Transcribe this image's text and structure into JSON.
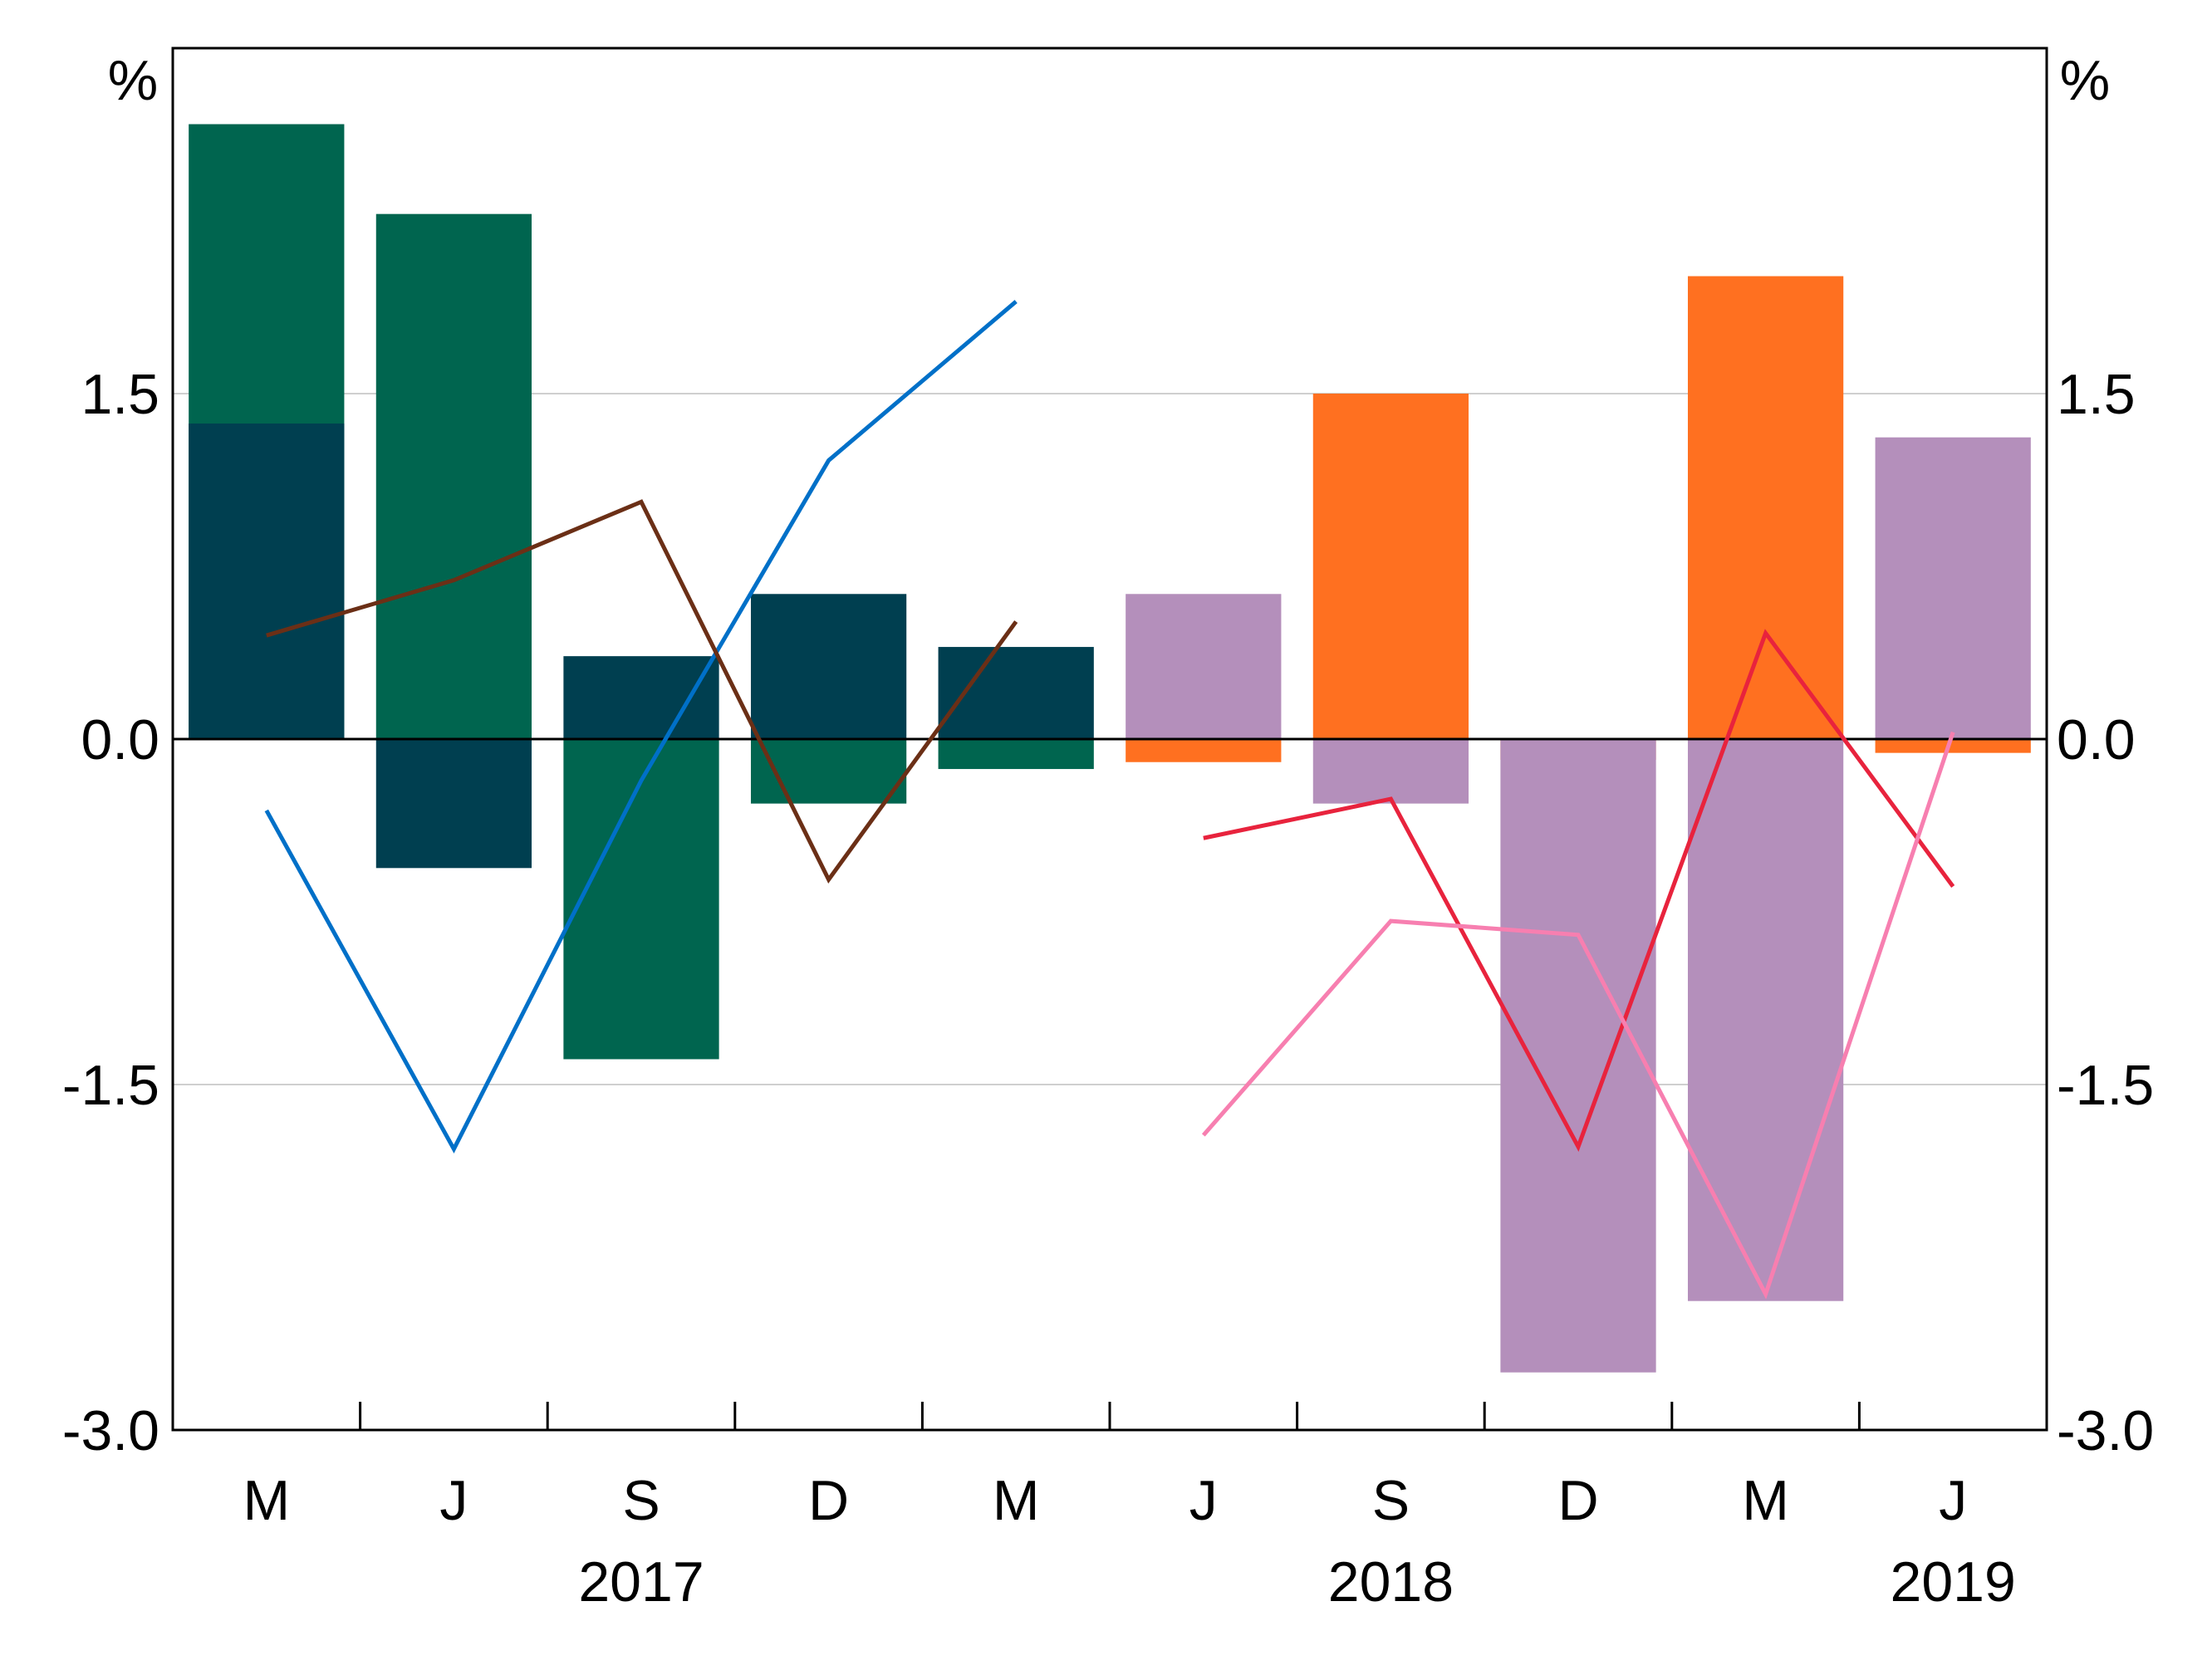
{
  "chart_data": {
    "type": "bar",
    "title": "",
    "xlabel": "",
    "ylabel": "",
    "unit_left": "%",
    "unit_right": "%",
    "ylim": [
      -3.0,
      3.0
    ],
    "yticks": [
      "1.5",
      "0.0",
      "-1.5",
      "-3.0"
    ],
    "ytick_values": [
      1.5,
      0.0,
      -1.5,
      -3.0
    ],
    "grid": true,
    "categories": [
      "M",
      "J",
      "S",
      "D",
      "M",
      "J",
      "S",
      "D",
      "M",
      "J"
    ],
    "years": [
      {
        "label": "2017",
        "center_index": 2.5
      },
      {
        "label": "2018",
        "center_index": 6.5
      },
      {
        "label": "2019",
        "center_index": 9.5
      }
    ],
    "bar_series": [
      {
        "color": "#00654f",
        "values": [
          2.67,
          2.28,
          -1.39,
          -0.28,
          -0.13,
          null,
          null,
          null,
          null,
          null
        ]
      },
      {
        "color": "#003f50",
        "values": [
          1.37,
          -0.56,
          0.36,
          0.63,
          0.4,
          null,
          null,
          null,
          null,
          null
        ]
      },
      {
        "color": "#ff7020",
        "values": [
          null,
          null,
          null,
          null,
          null,
          -0.1,
          1.5,
          -0.09,
          2.01,
          -0.06
        ]
      },
      {
        "color": "#b48fbb",
        "values": [
          null,
          null,
          null,
          null,
          null,
          0.63,
          -0.28,
          -2.75,
          -2.44,
          1.31
        ]
      }
    ],
    "line_series": [
      {
        "color": "#0070c8",
        "values": [
          -0.31,
          -1.78,
          null,
          null,
          1.9
        ],
        "x": [
          0,
          1,
          2,
          3,
          4
        ],
        "points": [
          -0.31,
          -1.78,
          -0.18,
          1.21,
          1.9
        ]
      },
      {
        "color": "#6b2f16",
        "x": [
          0,
          1,
          2,
          3,
          4
        ],
        "points": [
          0.45,
          0.69,
          1.03,
          -0.61,
          0.51
        ]
      },
      {
        "color": "#e8233d",
        "x": [
          5,
          6,
          7,
          8,
          9
        ],
        "points": [
          -0.43,
          -0.26,
          -1.77,
          0.46,
          -0.64
        ]
      },
      {
        "color": "#f77fb0",
        "x": [
          5,
          6,
          7,
          8,
          9
        ],
        "points": [
          -1.72,
          -0.79,
          -0.85,
          -2.41,
          0.03
        ]
      }
    ]
  }
}
